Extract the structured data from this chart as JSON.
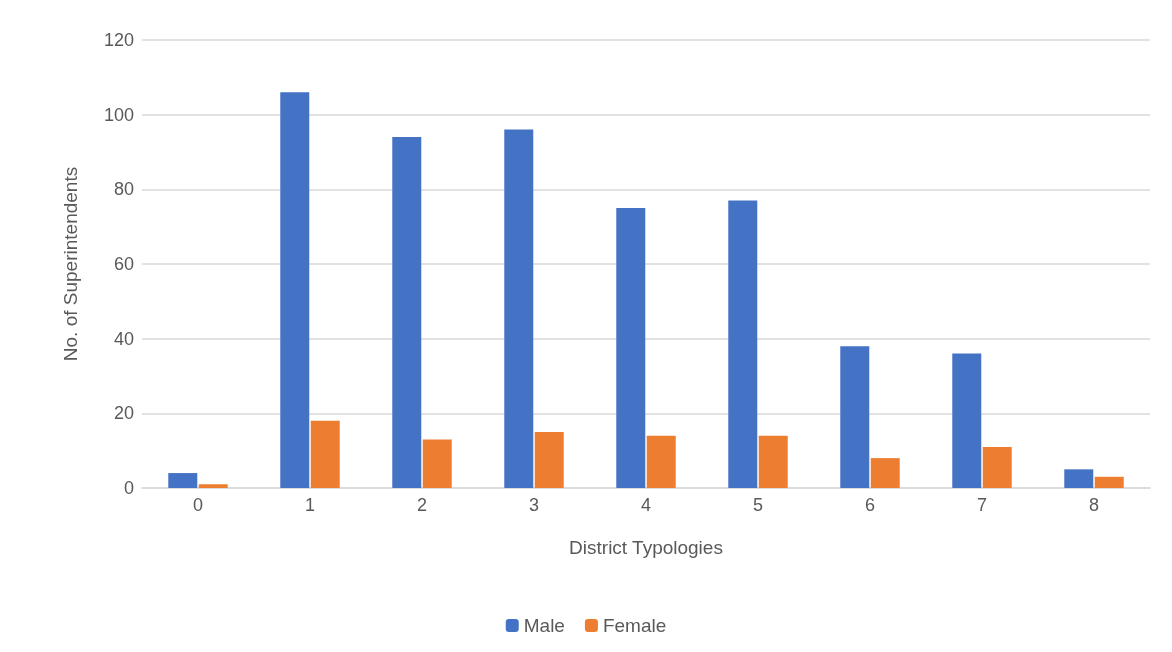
{
  "chart_data": {
    "type": "bar",
    "xlabel": "District Typologies",
    "ylabel": "No. of Superintendents",
    "categories": [
      "0",
      "1",
      "2",
      "3",
      "4",
      "5",
      "6",
      "7",
      "8"
    ],
    "series": [
      {
        "name": "Male",
        "color": "#4472c4",
        "values": [
          4,
          106,
          94,
          96,
          75,
          77,
          38,
          36,
          5
        ]
      },
      {
        "name": "Female",
        "color": "#ed7d31",
        "values": [
          1,
          18,
          13,
          15,
          14,
          14,
          8,
          11,
          3
        ]
      }
    ],
    "ylim": [
      0,
      120
    ],
    "yticks": [
      0,
      20,
      40,
      60,
      80,
      100,
      120
    ],
    "grid": "y",
    "legend": "bottom"
  }
}
